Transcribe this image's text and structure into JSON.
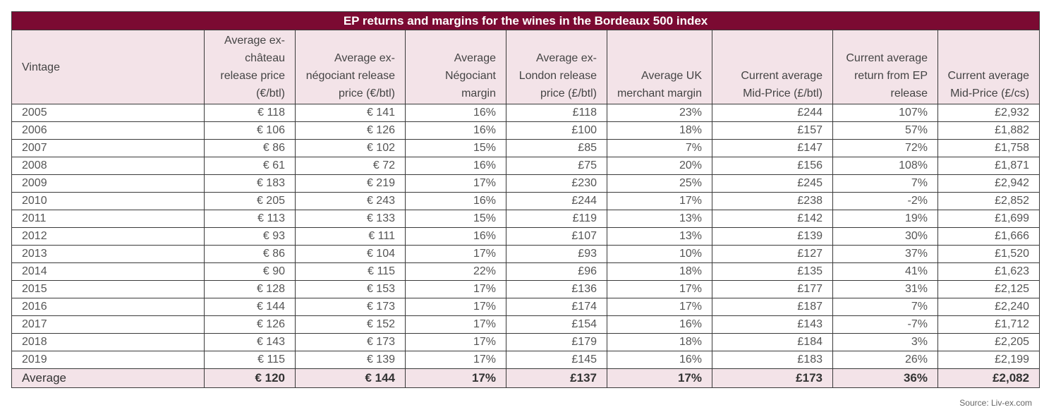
{
  "title": "EP returns and margins for the wines in the Bordeaux 500 index",
  "source": "Source: Liv-ex.com",
  "colors": {
    "header_bar": "#7b0a32",
    "header_bg": "#f3e3e8",
    "border": "#3a3a3a"
  },
  "chart_data": {
    "type": "table",
    "title": "EP returns and margins for the wines in the Bordeaux 500 index",
    "columns": [
      "Vintage",
      "Average ex-château release price (€/btl)",
      "Average ex-négociant release price (€/btl)",
      "Average Négociant margin",
      "Average ex-London release price (£/btl)",
      "Average UK merchant margin",
      "Current average Mid-Price (£/btl)",
      "Current average return from EP release",
      "Current average Mid-Price (£/cs)"
    ],
    "rows": [
      [
        "2005",
        "€ 118",
        "€ 141",
        "16%",
        "£118",
        "23%",
        "£244",
        "107%",
        "£2,932"
      ],
      [
        "2006",
        "€ 106",
        "€ 126",
        "16%",
        "£100",
        "18%",
        "£157",
        "57%",
        "£1,882"
      ],
      [
        "2007",
        "€ 86",
        "€ 102",
        "15%",
        "£85",
        "7%",
        "£147",
        "72%",
        "£1,758"
      ],
      [
        "2008",
        "€ 61",
        "€ 72",
        "16%",
        "£75",
        "20%",
        "£156",
        "108%",
        "£1,871"
      ],
      [
        "2009",
        "€ 183",
        "€ 219",
        "17%",
        "£230",
        "25%",
        "£245",
        "7%",
        "£2,942"
      ],
      [
        "2010",
        "€ 205",
        "€ 243",
        "16%",
        "£244",
        "17%",
        "£238",
        "-2%",
        "£2,852"
      ],
      [
        "2011",
        "€ 113",
        "€ 133",
        "15%",
        "£119",
        "13%",
        "£142",
        "19%",
        "£1,699"
      ],
      [
        "2012",
        "€ 93",
        "€ 111",
        "16%",
        "£107",
        "13%",
        "£139",
        "30%",
        "£1,666"
      ],
      [
        "2013",
        "€ 86",
        "€ 104",
        "17%",
        "£93",
        "10%",
        "£127",
        "37%",
        "£1,520"
      ],
      [
        "2014",
        "€ 90",
        "€ 115",
        "22%",
        "£96",
        "18%",
        "£135",
        "41%",
        "£1,623"
      ],
      [
        "2015",
        "€ 128",
        "€ 153",
        "17%",
        "£136",
        "17%",
        "£177",
        "31%",
        "£2,125"
      ],
      [
        "2016",
        "€ 144",
        "€ 173",
        "17%",
        "£174",
        "17%",
        "£187",
        "7%",
        "£2,240"
      ],
      [
        "2017",
        "€ 126",
        "€ 152",
        "17%",
        "£154",
        "16%",
        "£143",
        "-7%",
        "£1,712"
      ],
      [
        "2018",
        "€ 143",
        "€ 173",
        "17%",
        "£179",
        "18%",
        "£184",
        "3%",
        "£2,205"
      ],
      [
        "2019",
        "€ 115",
        "€ 139",
        "17%",
        "£145",
        "16%",
        "£183",
        "26%",
        "£2,199"
      ]
    ],
    "average_row": [
      "Average",
      "€ 120",
      "€ 144",
      "17%",
      "£137",
      "17%",
      "£173",
      "36%",
      "£2,082"
    ]
  }
}
